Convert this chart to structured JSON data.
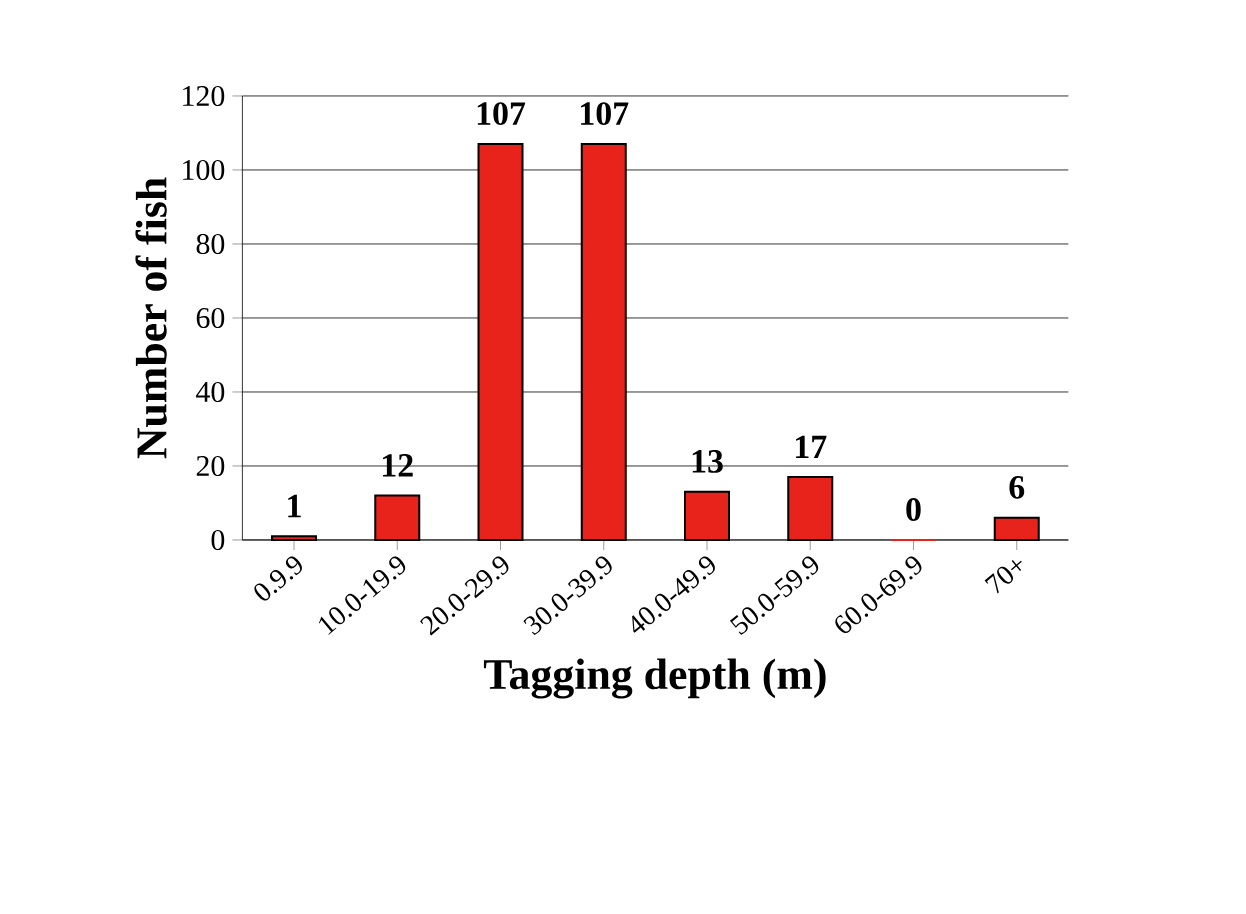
{
  "chart_data": {
    "type": "bar",
    "xlabel": "Tagging depth (m)",
    "ylabel": "Number of fish",
    "categories": [
      "0.9.9",
      "10.0-19.9",
      "20.0-29.9",
      "30.0-39.9",
      "40.0-49.9",
      "50.0-59.9",
      "60.0-69.9",
      "70+"
    ],
    "values": [
      1,
      12,
      107,
      107,
      13,
      17,
      0,
      6
    ],
    "color": "#e8231c",
    "ylim": [
      0,
      120
    ],
    "yticks": [
      0,
      20,
      40,
      60,
      80,
      100,
      120
    ],
    "grid": "y",
    "data_labels": true
  }
}
